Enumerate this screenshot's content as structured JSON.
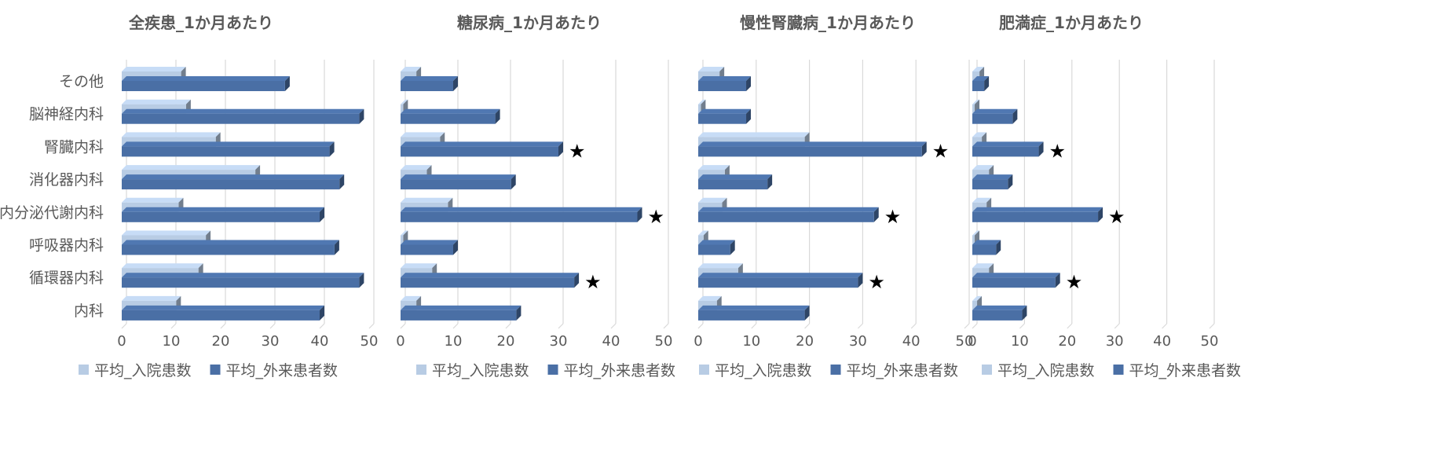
{
  "chart_data": [
    {
      "type": "bar",
      "orientation": "horizontal",
      "title": "全疾患_1か月あたり",
      "categories": [
        "その他",
        "脳神経内科",
        "腎臓内科",
        "消化器内科",
        "内分泌代謝内科",
        "呼吸器内科",
        "循環器内科",
        "内科"
      ],
      "series": [
        {
          "name": "平均_入院患数",
          "color": "#b8cce4",
          "values": [
            12,
            13,
            19,
            27,
            11.5,
            17,
            15.5,
            11
          ]
        },
        {
          "name": "平均_外来患者数",
          "color": "#4a6fa5",
          "values": [
            33,
            48,
            42,
            44,
            40,
            43,
            48,
            40
          ]
        }
      ],
      "marks": [],
      "mark_symbol": "★",
      "xlim": [
        0,
        50
      ],
      "xticks": [
        0,
        10,
        20,
        30,
        40,
        50
      ],
      "grid": true,
      "legend": "bottom"
    },
    {
      "type": "bar",
      "orientation": "horizontal",
      "title": "糖尿病_1か月あたり",
      "categories": [
        "その他",
        "脳神経内科",
        "腎臓内科",
        "消化器内科",
        "内分泌代謝内科",
        "呼吸器内科",
        "循環器内科",
        "内科"
      ],
      "series": [
        {
          "name": "平均_入院患数",
          "color": "#b8cce4",
          "values": [
            3,
            0.5,
            7.5,
            5,
            9,
            0.5,
            6,
            3
          ]
        },
        {
          "name": "平均_外来患者数",
          "color": "#4a6fa5",
          "values": [
            10,
            18,
            30,
            21,
            45,
            10,
            33,
            22
          ]
        }
      ],
      "marks": [
        "",
        "",
        "★",
        "",
        "★",
        "",
        "★",
        ""
      ],
      "mark_symbol": "★",
      "xlim": [
        0,
        50
      ],
      "xticks": [
        0,
        10,
        20,
        30,
        40,
        50
      ],
      "grid": true,
      "legend": "bottom"
    },
    {
      "type": "bar",
      "orientation": "horizontal",
      "title": "慢性腎臓病_1か月あたり",
      "categories": [
        "その他",
        "脳神経内科",
        "腎臓内科",
        "消化器内科",
        "内分泌代謝内科",
        "呼吸器内科",
        "循環器内科",
        "内科"
      ],
      "series": [
        {
          "name": "平均_入院患数",
          "color": "#b8cce4",
          "values": [
            4,
            0.5,
            20,
            5,
            4.5,
            1,
            7.5,
            3.5
          ]
        },
        {
          "name": "平均_外来患者数",
          "color": "#4a6fa5",
          "values": [
            9,
            9,
            42,
            13,
            33,
            6,
            30,
            20
          ]
        }
      ],
      "marks": [
        "",
        "",
        "★",
        "",
        "★",
        "",
        "★",
        ""
      ],
      "mark_symbol": "★",
      "xlim": [
        0,
        50
      ],
      "xticks": [
        0,
        10,
        20,
        30,
        40,
        50
      ],
      "grid": true,
      "legend": "bottom"
    },
    {
      "type": "bar",
      "orientation": "horizontal",
      "title": "肥満症_1か月あたり",
      "categories": [
        "その他",
        "脳神経内科",
        "腎臓内科",
        "消化器内科",
        "内分泌代謝内科",
        "呼吸器内科",
        "循環器内科",
        "内科"
      ],
      "series": [
        {
          "name": "平均_入院患数",
          "color": "#b8cce4",
          "values": [
            1.5,
            0.5,
            2,
            3.5,
            3,
            0.5,
            3.5,
            1
          ]
        },
        {
          "name": "平均_外来患者数",
          "color": "#4a6fa5",
          "values": [
            2.5,
            8.5,
            14,
            7.5,
            26.5,
            5,
            17.5,
            10.5
          ]
        }
      ],
      "marks": [
        "",
        "",
        "★",
        "",
        "★",
        "",
        "★",
        ""
      ],
      "mark_symbol": "★",
      "xlim": [
        0,
        50
      ],
      "xticks": [
        0,
        10,
        20,
        30,
        40,
        50
      ],
      "grid": true,
      "legend": "bottom"
    }
  ]
}
